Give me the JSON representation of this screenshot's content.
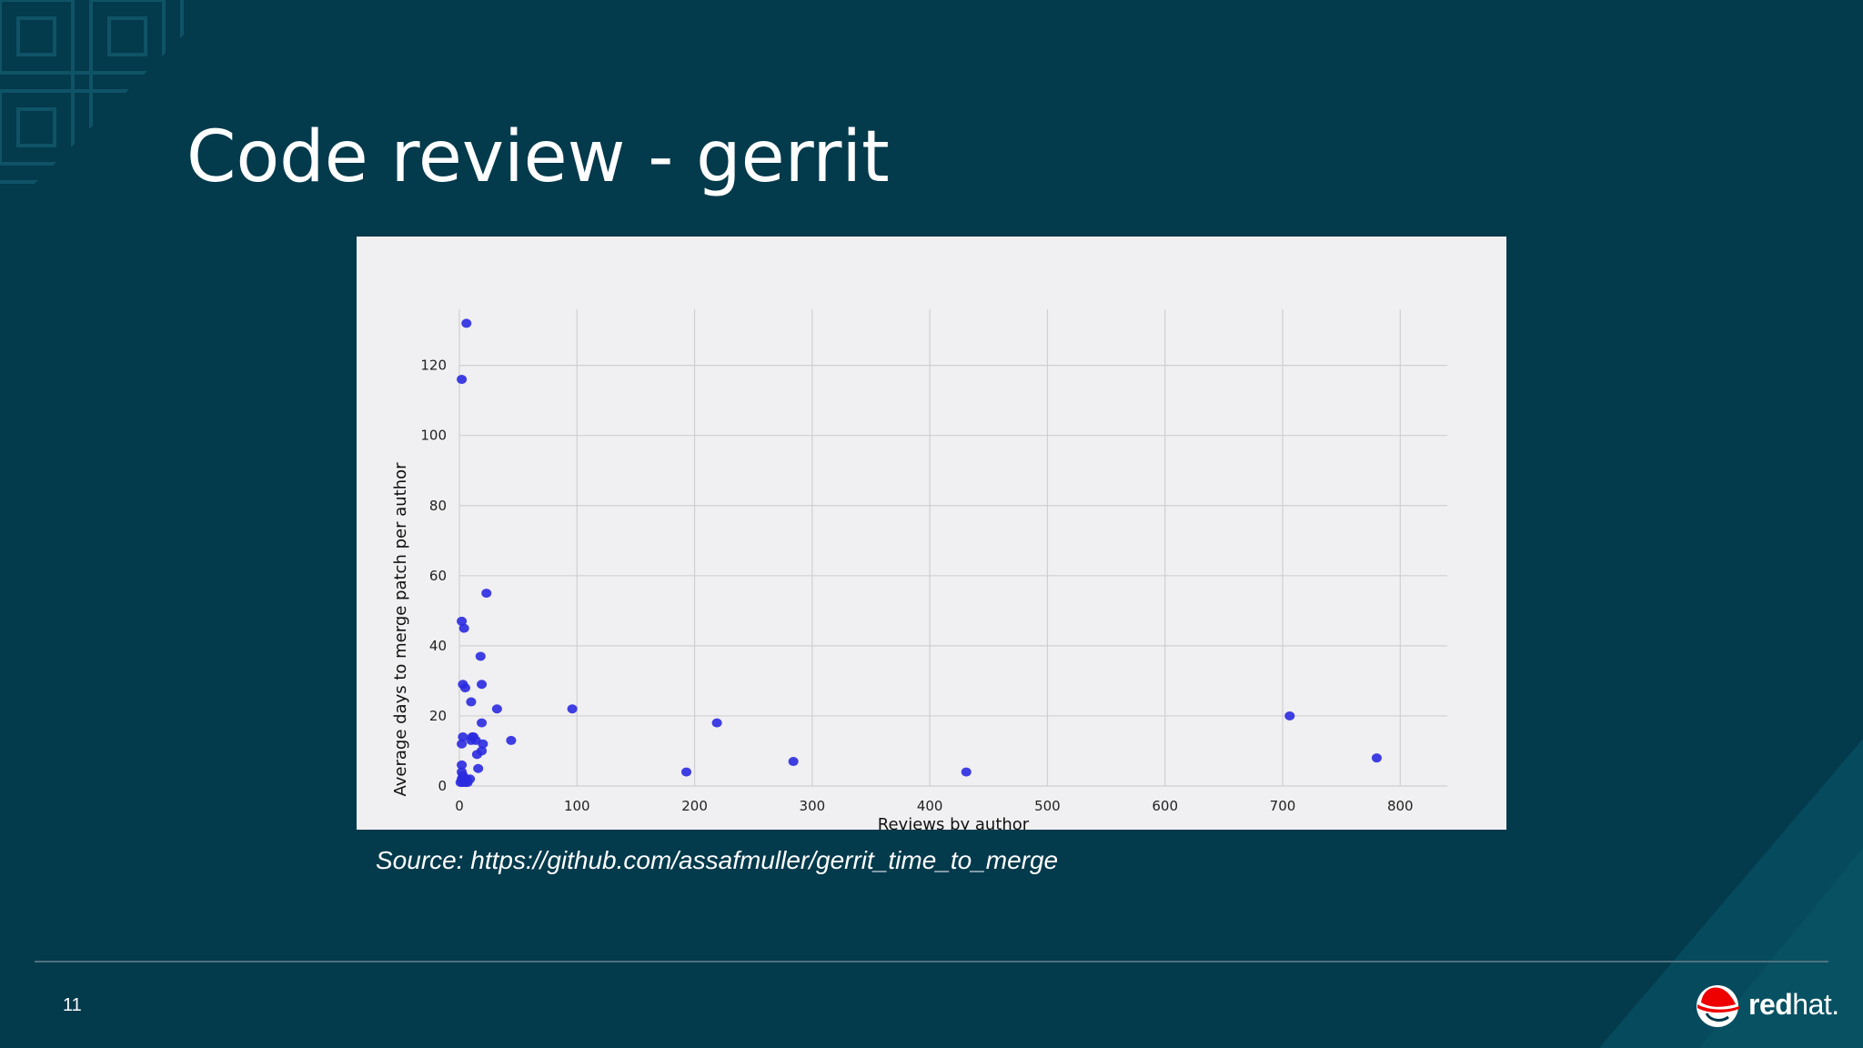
{
  "slide": {
    "title": "Code review - gerrit",
    "source": "Source: https://github.com/assafmuller/gerrit_time_to_merge",
    "page_number": "11",
    "logo_text_bold": "red",
    "logo_text_light": "hat.",
    "colors": {
      "background": "#033a4c",
      "panel": "#f0eff1",
      "point": "#2a2ae0",
      "logo_red": "#e00"
    }
  },
  "chart_data": {
    "type": "scatter",
    "title": "",
    "xlabel": "Reviews by author",
    "ylabel": "Average days to merge patch per author",
    "xlim": [
      0,
      840
    ],
    "ylim": [
      0,
      136
    ],
    "xticks": [
      0,
      100,
      200,
      300,
      400,
      500,
      600,
      700,
      800
    ],
    "yticks": [
      0,
      20,
      40,
      60,
      80,
      100,
      120
    ],
    "grid": true,
    "series": [
      {
        "points": [
          [
            6,
            132
          ],
          [
            2,
            116
          ],
          [
            23,
            55
          ],
          [
            2,
            47
          ],
          [
            4,
            45
          ],
          [
            18,
            37
          ],
          [
            3,
            29
          ],
          [
            5,
            28
          ],
          [
            19,
            29
          ],
          [
            10,
            24
          ],
          [
            32,
            22
          ],
          [
            96,
            22
          ],
          [
            19,
            18
          ],
          [
            219,
            18
          ],
          [
            706,
            20
          ],
          [
            3,
            14
          ],
          [
            2,
            12
          ],
          [
            11,
            14
          ],
          [
            14,
            13
          ],
          [
            10,
            13
          ],
          [
            20,
            12
          ],
          [
            44,
            13
          ],
          [
            19,
            10
          ],
          [
            15,
            9
          ],
          [
            284,
            7
          ],
          [
            780,
            8
          ],
          [
            2,
            6
          ],
          [
            16,
            5
          ],
          [
            193,
            4
          ],
          [
            431,
            4
          ],
          [
            2,
            4
          ],
          [
            3,
            3
          ],
          [
            9,
            2
          ],
          [
            2,
            2
          ],
          [
            5,
            1
          ],
          [
            1,
            1
          ],
          [
            4,
            2
          ],
          [
            7,
            1
          ],
          [
            3,
            1
          ],
          [
            12,
            14
          ],
          [
            6,
            2
          ]
        ]
      }
    ]
  }
}
